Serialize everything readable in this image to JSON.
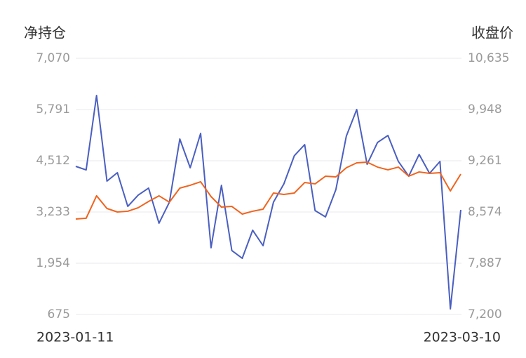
{
  "chart_data": {
    "type": "line",
    "ylabel": "净持仓",
    "y2label": "收盘价",
    "categories": [
      "2023-01-11",
      null,
      null,
      null,
      null,
      null,
      null,
      null,
      null,
      null,
      null,
      null,
      null,
      null,
      null,
      null,
      null,
      null,
      null,
      null,
      null,
      null,
      null,
      null,
      null,
      null,
      null,
      null,
      null,
      null,
      null,
      null,
      null,
      null,
      null,
      null,
      null,
      "2023-03-10"
    ],
    "ylim": [
      675,
      7070
    ],
    "yticks": [
      675,
      {
        "value": 1954,
        "label": "1,954"
      },
      {
        "value": 3233,
        "label": "3,233"
      },
      {
        "value": 4512,
        "label": "4,512"
      },
      {
        "value": 5791,
        "label": "5,791"
      },
      {
        "value": 7070,
        "label": "7,070"
      }
    ],
    "y2lim": [
      7200,
      10635
    ],
    "y2ticks": [
      {
        "value": 7200,
        "label": "7,200"
      },
      {
        "value": 7887,
        "label": "7,887"
      },
      {
        "value": 8574,
        "label": "8,574"
      },
      {
        "value": 9261,
        "label": "9,261"
      },
      {
        "value": 9948,
        "label": "9,948"
      },
      {
        "value": 10635,
        "label": "10,635"
      }
    ],
    "grid": true,
    "series": [
      {
        "color": "#4a5fc1",
        "axis": "y",
        "values": [
          4372,
          4284,
          6141,
          4004,
          4214,
          3373,
          3654,
          3829,
          2953,
          3478,
          5055,
          4337,
          5195,
          2340,
          3899,
          2270,
          2077,
          2778,
          2392,
          3478,
          3934,
          4635,
          4915,
          3268,
          3110,
          3794,
          5125,
          5791,
          4424,
          4968,
          5143,
          4495,
          4127,
          4670,
          4197,
          4495,
          815,
          3286
        ]
      },
      {
        "color": "#f0641e",
        "axis": "y2",
        "values": [
          8480,
          8490,
          8791,
          8621,
          8574,
          8584,
          8631,
          8715,
          8791,
          8706,
          8894,
          8932,
          8979,
          8781,
          8640,
          8649,
          8546,
          8584,
          8612,
          8828,
          8809,
          8828,
          8969,
          8951,
          9054,
          9045,
          9167,
          9233,
          9242,
          9176,
          9139,
          9176,
          9054,
          9111,
          9092,
          9101,
          8856,
          9082
        ]
      }
    ]
  }
}
